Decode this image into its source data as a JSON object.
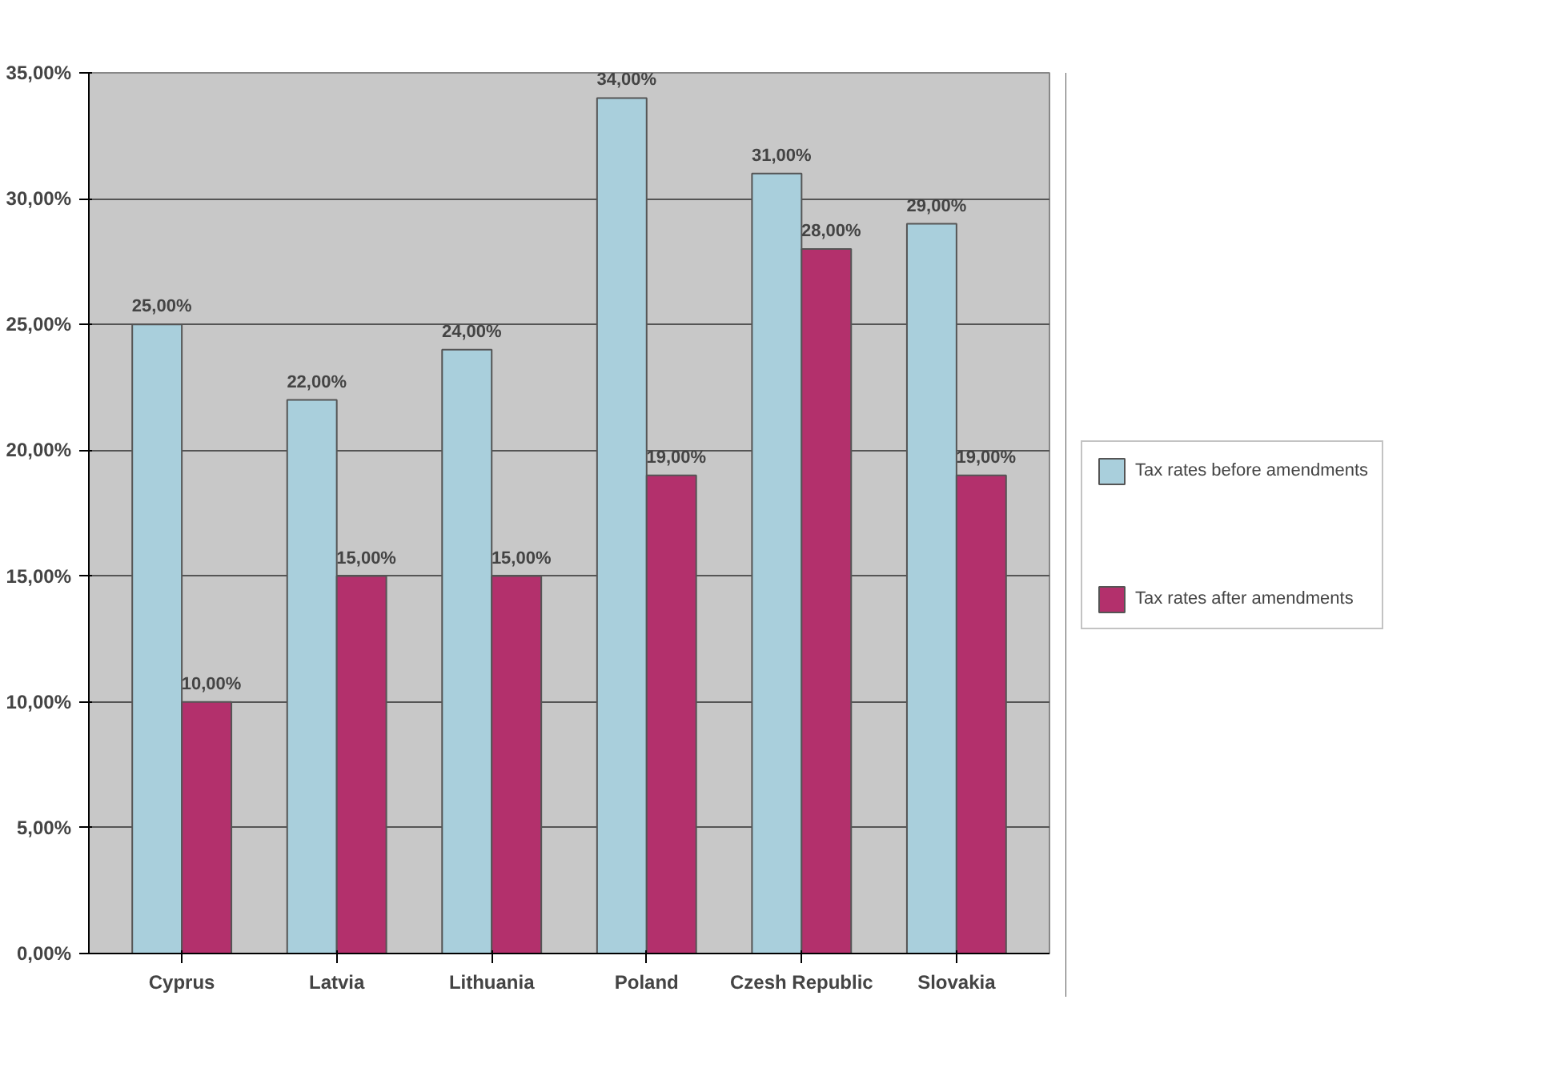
{
  "chart_data": {
    "type": "bar",
    "categories": [
      "Cyprus",
      "Latvia",
      "Lithuania",
      "Poland",
      "Czesh Republic",
      "Slovakia"
    ],
    "series": [
      {
        "name": "Tax rates before amendments",
        "color": "#a9cfdc",
        "values": [
          25,
          22,
          24,
          34,
          31,
          29
        ],
        "value_labels": [
          "25,00%",
          "22,00%",
          "24,00%",
          "34,00%",
          "31,00%",
          "29,00%"
        ]
      },
      {
        "name": "Tax rates after amendments",
        "color": "#b3306c",
        "values": [
          10,
          15,
          15,
          19,
          28,
          19
        ],
        "value_labels": [
          "10,00%",
          "15,00%",
          "15,00%",
          "19,00%",
          "28,00%",
          "19,00%"
        ]
      }
    ],
    "ylim": [
      0,
      35
    ],
    "yticks": [
      {
        "value": 0,
        "label": "0,00%"
      },
      {
        "value": 5,
        "label": "5,00%"
      },
      {
        "value": 10,
        "label": "10,00%"
      },
      {
        "value": 15,
        "label": "15,00%"
      },
      {
        "value": 20,
        "label": "20,00%"
      },
      {
        "value": 25,
        "label": "25,00%"
      },
      {
        "value": 30,
        "label": "30,00%"
      },
      {
        "value": 35,
        "label": "35,00%"
      }
    ],
    "grid": "y",
    "legend": "right"
  }
}
